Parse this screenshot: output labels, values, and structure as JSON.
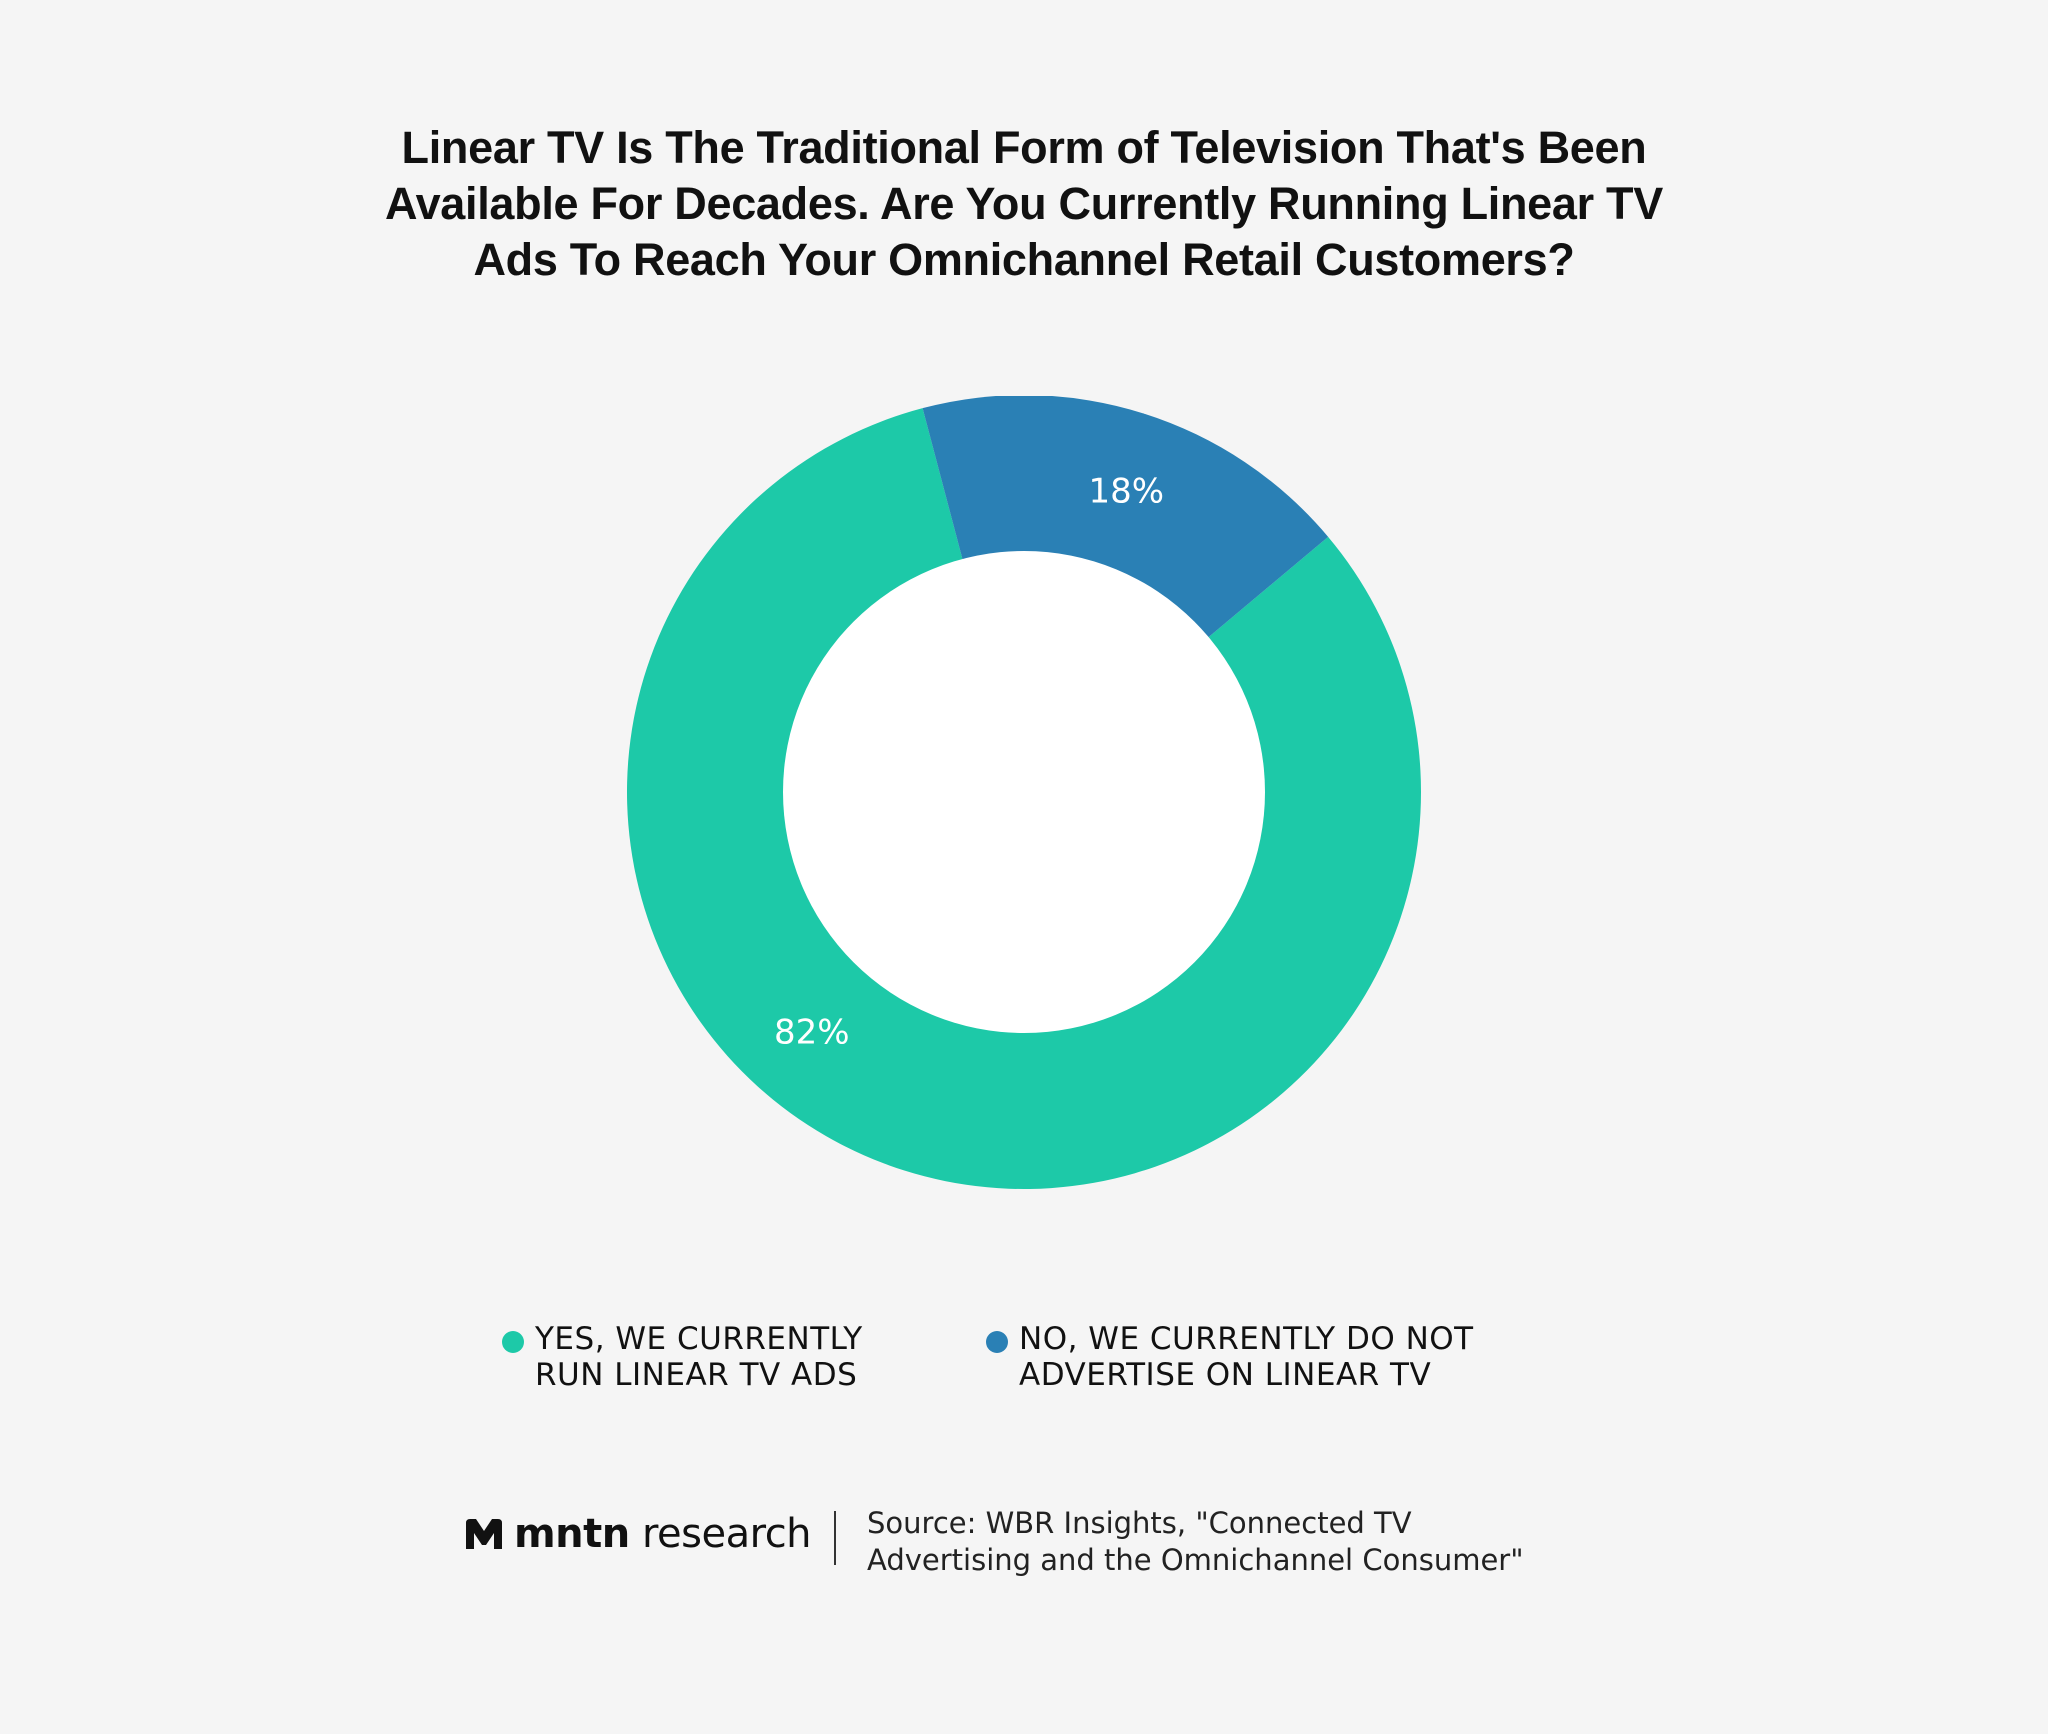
{
  "chart_data": {
    "type": "pie",
    "variant": "donut",
    "title_lines": [
      "Linear TV Is The Traditional Form of Television That's Been",
      "Available For Decades. Are You Currently Running Linear TV",
      "Ads To Reach Your Omnichannel Retail Customers?"
    ],
    "slices": [
      {
        "label_lines": [
          "YES, WE CURRENTLY",
          "RUN LINEAR TV ADS"
        ],
        "value": 82,
        "value_label": "82%",
        "color": "#1dc9a8"
      },
      {
        "label_lines": [
          "NO, WE CURRENTLY DO NOT",
          "ADVERTISE ON LINEAR TV"
        ],
        "value": 18,
        "value_label": "18%",
        "color": "#2a80b5"
      }
    ],
    "legend_placement": "bottom"
  },
  "footer": {
    "brand_bold": "mntn",
    "brand_regular": "research",
    "brand_logo_icon": "mntn-logo-icon",
    "source_lines": [
      "Source: WBR Insights, \"Connected TV",
      "Advertising and the Omnichannel Consumer\""
    ]
  },
  "colors": {
    "background": "#f5f5f5",
    "inner_hole": "#ffffff",
    "text": "#111111"
  }
}
